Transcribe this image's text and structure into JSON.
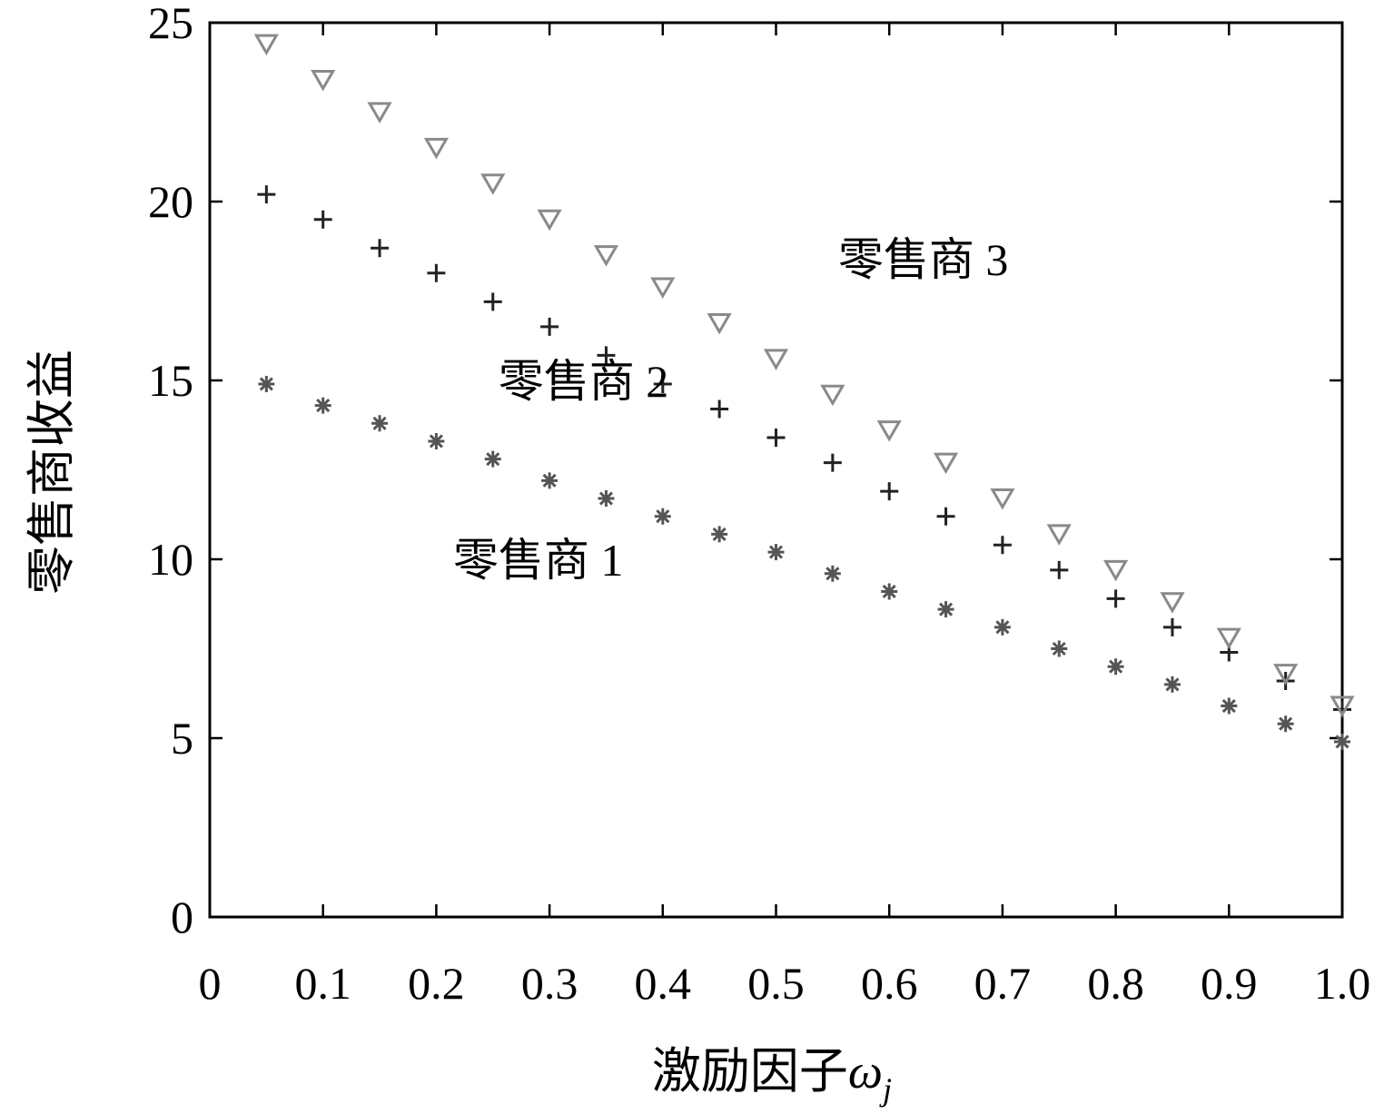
{
  "chart_data": {
    "type": "scatter",
    "xlabel": "激励因子",
    "xlabel_symbol": "ω",
    "xlabel_subscript": "j",
    "ylabel": "零售商收益",
    "xlim": [
      0,
      1.0
    ],
    "ylim": [
      0,
      25
    ],
    "grid": false,
    "xticks": [
      0,
      0.1,
      0.2,
      0.3,
      0.4,
      0.5,
      0.6,
      0.7,
      0.8,
      0.9,
      1.0
    ],
    "xtick_labels": [
      "0",
      "0.1",
      "0.2",
      "0.3",
      "0.4",
      "0.5",
      "0.6",
      "0.7",
      "0.8",
      "0.9",
      "1.0"
    ],
    "yticks": [
      0,
      5,
      10,
      15,
      20,
      25
    ],
    "ytick_labels": [
      "0",
      "5",
      "10",
      "15",
      "20",
      "25"
    ],
    "x": [
      0.05,
      0.1,
      0.15,
      0.2,
      0.25,
      0.3,
      0.35,
      0.4,
      0.45,
      0.5,
      0.55,
      0.6,
      0.65,
      0.7,
      0.75,
      0.8,
      0.85,
      0.9,
      0.95,
      1.0
    ],
    "series": [
      {
        "marker": "asterisk",
        "color": "#555555",
        "values": [
          14.9,
          14.3,
          13.8,
          13.3,
          12.8,
          12.2,
          11.7,
          11.2,
          10.7,
          10.2,
          9.6,
          9.1,
          8.6,
          8.1,
          7.5,
          7.0,
          6.5,
          5.9,
          5.4,
          4.9
        ]
      },
      {
        "marker": "plus",
        "color": "#222222",
        "values": [
          20.2,
          19.5,
          18.7,
          18.0,
          17.2,
          16.5,
          15.7,
          14.9,
          14.2,
          13.4,
          12.7,
          11.9,
          11.2,
          10.4,
          9.7,
          8.9,
          8.1,
          7.4,
          6.6,
          5.8
        ]
      },
      {
        "marker": "triangle-down",
        "color": "#8a8a8a",
        "values": [
          24.4,
          23.4,
          22.5,
          21.5,
          20.5,
          19.5,
          18.5,
          17.6,
          16.6,
          15.6,
          14.6,
          13.6,
          12.7,
          11.7,
          10.7,
          9.7,
          8.8,
          7.8,
          6.8,
          5.9
        ]
      }
    ],
    "annotations": [
      {
        "text": "零售商  1",
        "x": 0.29,
        "y": 10.0
      },
      {
        "text": "零售商  2",
        "x": 0.33,
        "y": 15.0
      },
      {
        "text": "零售商  3",
        "x": 0.63,
        "y": 18.4
      }
    ]
  }
}
